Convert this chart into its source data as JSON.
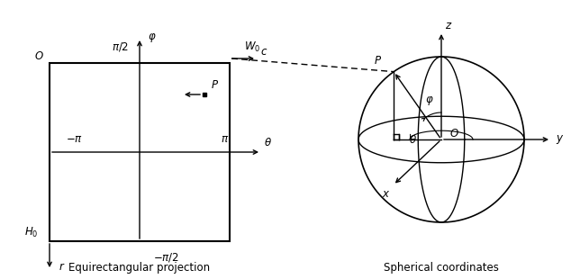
{
  "fig_width": 6.34,
  "fig_height": 3.1,
  "bg_color": "#ffffff",
  "left_panel": {
    "label_O": "O",
    "label_H0": "$H_0$",
    "label_W0": "$W_0$",
    "label_minus_pi": "$-\\pi$",
    "label_pi": "$\\pi$",
    "label_phi_top": "$\\pi/2$",
    "label_phi_bot": "$-\\pi/2$",
    "label_phi_axis": "$\\varphi$",
    "label_theta_axis": "$\\theta$",
    "label_r": "$r$",
    "label_c": "$c$",
    "label_P": "$P$",
    "caption": "Equirectangular projection"
  },
  "right_panel": {
    "caption": "Spherical coordinates",
    "label_x": "$x$",
    "label_y": "$y$",
    "label_z": "$z$",
    "label_O": "$O$",
    "label_P": "$P$",
    "label_phi": "$\\varphi$",
    "label_theta": "$\\theta$"
  }
}
